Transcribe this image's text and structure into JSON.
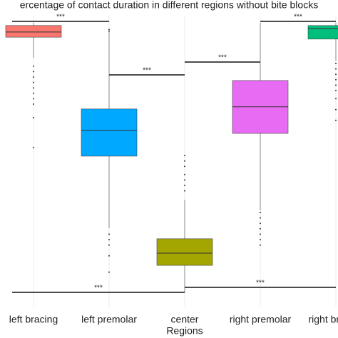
{
  "chart_data": {
    "type": "box",
    "title": "ercentage of contact duration in different regions without bite blocks",
    "x_label": "Regions",
    "categories": [
      "left bracing",
      "left premolar",
      "center",
      "right premolar",
      "right bracing"
    ],
    "colors": [
      "#f8766d",
      "#00a9ff",
      "#a3a500",
      "#e76bf3",
      "#00bf7d"
    ],
    "whisker_low": [
      87,
      24.2,
      0.5,
      30.8,
      86
    ],
    "q1": [
      94.7,
      50.8,
      10.5,
      59.2,
      94
    ],
    "median": [
      96.6,
      60.3,
      15,
      69,
      97.9
    ],
    "q3": [
      99,
      68.2,
      20.3,
      78.7,
      99
    ],
    "whisker_high": [
      100,
      96.6,
      34.7,
      100,
      100
    ],
    "outliers": [
      [
        84,
        82,
        80,
        78,
        76,
        74,
        72,
        70,
        65,
        54
      ],
      [
        97.5,
        96.9,
        22,
        20,
        18,
        14,
        8
      ],
      [
        51,
        49,
        47,
        44,
        42,
        40,
        38
      ],
      [
        30,
        28,
        26,
        24,
        22,
        20,
        18
      ],
      [
        85,
        83,
        81,
        79,
        77,
        75,
        72,
        68,
        64
      ]
    ],
    "ylim": [
      0,
      100
    ],
    "grid": true,
    "comparisons": [
      {
        "from": 0,
        "to": 1,
        "label": "***"
      },
      {
        "from": 1,
        "to": 2,
        "label": "***"
      },
      {
        "from": 2,
        "to": 3,
        "label": "***"
      },
      {
        "from": 3,
        "to": 4,
        "label": "***"
      },
      {
        "from": 0,
        "to": 2,
        "label": "***"
      },
      {
        "from": 2,
        "to": 4,
        "label": "***"
      }
    ]
  }
}
